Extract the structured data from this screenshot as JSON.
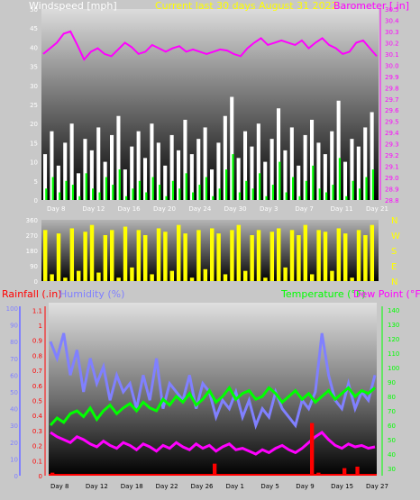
{
  "header": {
    "left_title": "Windspeed [mph]",
    "center_title": "Current last 30 days August 31 2022",
    "right_title": "Barometer [.in]"
  },
  "colors": {
    "windspeed": "#ffffff",
    "gust": "#00ff00",
    "barometer": "#ff00ff",
    "direction": "#ffff00",
    "rainfall": "#ff0000",
    "humidity": "#8080ff",
    "temperature": "#00ff00",
    "dewpoint": "#ff00ff",
    "title_yellow": "#ffff00",
    "background": "#c8c8c8"
  },
  "chart_data": [
    {
      "type": "line",
      "title": "Current last 30 days August 31 2022",
      "ylabel": "Windspeed [mph]",
      "ylabel_right": "Barometer [.in]",
      "x_ticks": [
        "Day 8",
        "Day 12",
        "Day 16",
        "Day 20",
        "Day 24",
        "Day 30",
        "Day 3",
        "Day 7",
        "Day 11",
        "Day 21"
      ],
      "y_ticks_left": [
        0,
        5,
        10,
        15,
        20,
        25,
        30,
        35,
        40,
        45,
        50
      ],
      "y_ticks_right": [
        28.8,
        28.9,
        29.0,
        29.1,
        29.2,
        29.3,
        29.4,
        29.5,
        29.6,
        29.7,
        29.8,
        29.9,
        30.0,
        30.1,
        30.2,
        30.3,
        30.4,
        30.5
      ],
      "ylim_left": [
        0,
        50
      ],
      "ylim_right": [
        28.8,
        30.5
      ],
      "series": [
        {
          "name": "Windspeed",
          "axis": "left",
          "values": [
            12,
            18,
            9,
            15,
            20,
            7,
            16,
            13,
            19,
            10,
            17,
            22,
            8,
            14,
            18,
            11,
            20,
            15,
            9,
            17,
            13,
            21,
            12,
            16,
            19,
            8,
            15,
            22,
            27,
            11,
            18,
            14,
            20,
            10,
            16,
            24,
            13,
            19,
            9,
            17,
            21,
            15,
            12,
            18,
            26,
            10,
            16,
            14,
            19,
            23
          ]
        },
        {
          "name": "Gust",
          "axis": "left",
          "values": [
            3,
            6,
            2,
            5,
            4,
            1,
            7,
            3,
            2,
            6,
            4,
            8,
            1,
            3,
            5,
            2,
            6,
            4,
            1,
            5,
            3,
            7,
            2,
            4,
            6,
            1,
            3,
            8,
            12,
            2,
            5,
            3,
            7,
            1,
            4,
            10,
            2,
            6,
            1,
            5,
            9,
            3,
            2,
            4,
            11,
            1,
            5,
            3,
            6,
            8
          ]
        },
        {
          "name": "Barometer",
          "axis": "right",
          "values": [
            30.1,
            30.15,
            30.2,
            30.28,
            30.3,
            30.18,
            30.05,
            30.12,
            30.15,
            30.1,
            30.08,
            30.14,
            30.2,
            30.16,
            30.1,
            30.12,
            30.18,
            30.15,
            30.12,
            30.15,
            30.17,
            30.12,
            30.14,
            30.12,
            30.1,
            30.12,
            30.14,
            30.13,
            30.1,
            30.08,
            30.15,
            30.2,
            30.24,
            30.18,
            30.2,
            30.22,
            30.2,
            30.18,
            30.22,
            30.15,
            30.2,
            30.24,
            30.18,
            30.15,
            30.1,
            30.12,
            30.2,
            30.22,
            30.15,
            30.08
          ]
        }
      ]
    },
    {
      "type": "line",
      "ylabel_right_letters": [
        "N",
        "W",
        "S",
        "E",
        "N"
      ],
      "y_ticks": [
        0,
        90,
        180,
        270,
        360
      ],
      "ylim": [
        0,
        360
      ],
      "series": [
        {
          "name": "Wind direction",
          "values": [
            300,
            40,
            280,
            20,
            310,
            60,
            290,
            330,
            50,
            270,
            300,
            20,
            320,
            80,
            300,
            270,
            40,
            310,
            290,
            60,
            330,
            280,
            20,
            300,
            70,
            310,
            280,
            40,
            300,
            330,
            60,
            270,
            300,
            20,
            290,
            310,
            80,
            300,
            270,
            330,
            40,
            300,
            290,
            60,
            310,
            280,
            20,
            300,
            270,
            330
          ]
        }
      ]
    },
    {
      "type": "line",
      "ylabel_left_rain": "Rainfall (.in)",
      "ylabel_left_humidity": "Humidity (%)",
      "ylabel_right_temp": "Temperature (°F)",
      "ylabel_right_dew": "Dew Point (°F)",
      "x_ticks": [
        "Day 8",
        "Day 12",
        "Day 18",
        "Day 22",
        "Day 26",
        "Day 1",
        "Day 5",
        "Day 9",
        "Day 15",
        "Day 27"
      ],
      "y_ticks_humidity": [
        0,
        10,
        20,
        30,
        40,
        50,
        60,
        70,
        80,
        90,
        100
      ],
      "y_ticks_rain": [
        0,
        0.1,
        0.2,
        0.3,
        0.4,
        0.5,
        0.6,
        0.7,
        0.8,
        0.9,
        1,
        1.1
      ],
      "y_ticks_temp": [
        30,
        40,
        50,
        60,
        70,
        80,
        90,
        100,
        110,
        120,
        130,
        140
      ],
      "ylim_rain": [
        0,
        1.15
      ],
      "ylim_temp": [
        25,
        145
      ],
      "series": [
        {
          "name": "Humidity",
          "axis": "humidity",
          "values": [
            80,
            70,
            85,
            60,
            75,
            50,
            70,
            55,
            65,
            45,
            60,
            50,
            55,
            40,
            60,
            45,
            70,
            40,
            55,
            50,
            45,
            60,
            40,
            55,
            50,
            35,
            45,
            40,
            50,
            35,
            45,
            30,
            40,
            35,
            50,
            40,
            35,
            30,
            45,
            40,
            50,
            85,
            60,
            45,
            40,
            55,
            40,
            50,
            45,
            60
          ]
        },
        {
          "name": "Temperature",
          "axis": "temp",
          "values": [
            60,
            65,
            62,
            68,
            70,
            66,
            72,
            64,
            70,
            74,
            68,
            72,
            75,
            70,
            76,
            72,
            70,
            78,
            74,
            80,
            76,
            82,
            74,
            78,
            84,
            76,
            80,
            86,
            78,
            82,
            84,
            78,
            80,
            86,
            82,
            76,
            80,
            84,
            78,
            82,
            76,
            80,
            84,
            78,
            82,
            86,
            80,
            84,
            82,
            86
          ]
        },
        {
          "name": "Dew Point",
          "axis": "temp",
          "values": [
            55,
            52,
            50,
            48,
            52,
            50,
            47,
            45,
            49,
            46,
            44,
            48,
            46,
            43,
            47,
            45,
            42,
            46,
            44,
            48,
            45,
            43,
            47,
            44,
            46,
            42,
            45,
            47,
            43,
            44,
            42,
            40,
            43,
            41,
            44,
            46,
            43,
            41,
            44,
            48,
            52,
            55,
            50,
            46,
            44,
            47,
            45,
            46,
            44,
            45
          ]
        },
        {
          "name": "Rainfall",
          "axis": "rain",
          "values": [
            0.02,
            0,
            0,
            0,
            0,
            0,
            0,
            0,
            0,
            0,
            0,
            0,
            0,
            0,
            0,
            0,
            0,
            0,
            0,
            0,
            0,
            0,
            0,
            0,
            0,
            0.08,
            0,
            0,
            0,
            0,
            0,
            0,
            0,
            0,
            0,
            0,
            0,
            0,
            0,
            0,
            0.35,
            0.02,
            0,
            0,
            0,
            0.05,
            0,
            0.06,
            0,
            0
          ]
        }
      ]
    }
  ]
}
